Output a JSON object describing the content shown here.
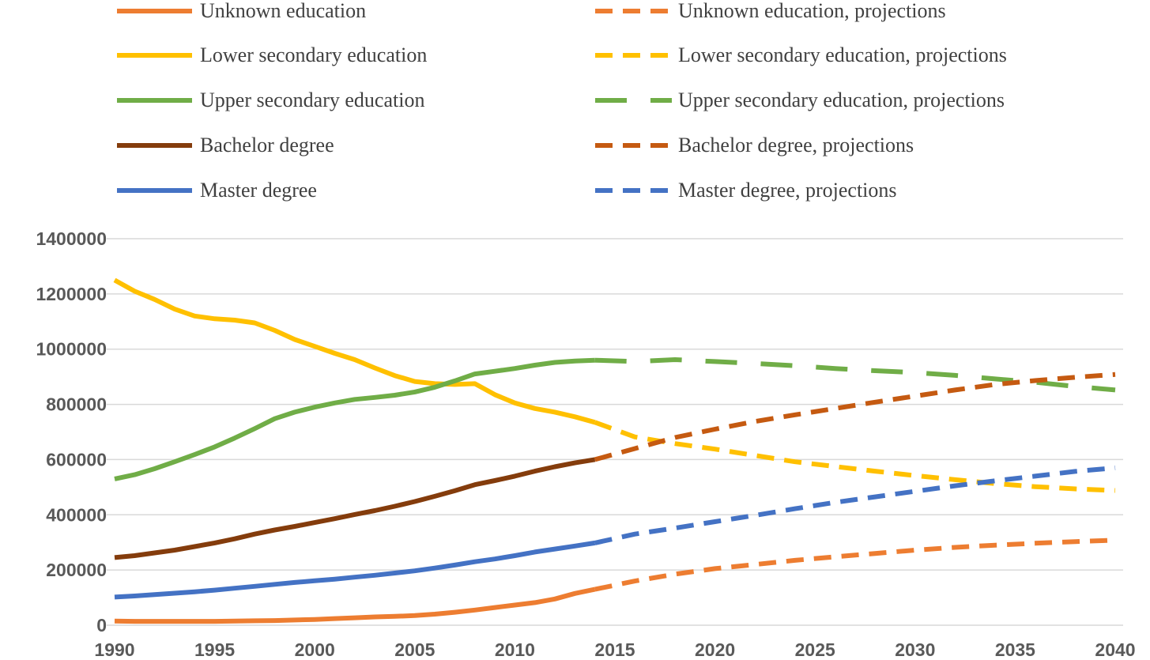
{
  "chart_data": {
    "type": "line",
    "title": "",
    "xlabel": "",
    "ylabel": "",
    "xlim": [
      1990,
      2040
    ],
    "ylim": [
      0,
      1400000
    ],
    "x_ticks": [
      "1990",
      "1995",
      "2000",
      "2005",
      "2010",
      "2015",
      "2020",
      "2025",
      "2030",
      "2035",
      "2040"
    ],
    "y_ticks": [
      "0",
      "200000",
      "400000",
      "600000",
      "800000",
      "1000000",
      "1200000",
      "1400000"
    ],
    "grid": "horizontal",
    "legend_position": "top",
    "series": [
      {
        "name": "Unknown education",
        "color": "#ED7D31",
        "style": "solid",
        "x": [
          1990,
          1991,
          1992,
          1993,
          1994,
          1995,
          1996,
          1997,
          1998,
          1999,
          2000,
          2001,
          2002,
          2003,
          2004,
          2005,
          2006,
          2007,
          2008,
          2009,
          2010,
          2011,
          2012,
          2013,
          2014
        ],
        "y": [
          15000,
          14000,
          14000,
          14000,
          14000,
          14000,
          15000,
          16000,
          17000,
          19000,
          21000,
          24000,
          27000,
          30000,
          32000,
          35000,
          40000,
          47000,
          55000,
          64000,
          73000,
          82000,
          95000,
          115000,
          130000
        ]
      },
      {
        "name": "Lower secondary education",
        "color": "#FFC000",
        "style": "solid",
        "x": [
          1990,
          1991,
          1992,
          1993,
          1994,
          1995,
          1996,
          1997,
          1998,
          1999,
          2000,
          2001,
          2002,
          2003,
          2004,
          2005,
          2006,
          2007,
          2008,
          2009,
          2010,
          2011,
          2012,
          2013,
          2014
        ],
        "y": [
          1250000,
          1210000,
          1180000,
          1145000,
          1120000,
          1110000,
          1105000,
          1095000,
          1068000,
          1035000,
          1010000,
          985000,
          962000,
          932000,
          904000,
          883000,
          875000,
          872000,
          875000,
          835000,
          805000,
          785000,
          772000,
          755000,
          735000
        ]
      },
      {
        "name": "Upper secondary education",
        "color": "#70AD47",
        "style": "solid",
        "x": [
          1990,
          1991,
          1992,
          1993,
          1994,
          1995,
          1996,
          1997,
          1998,
          1999,
          2000,
          2001,
          2002,
          2003,
          2004,
          2005,
          2006,
          2007,
          2008,
          2009,
          2010,
          2011,
          2012,
          2013,
          2014
        ],
        "y": [
          530000,
          545000,
          567000,
          592000,
          618000,
          646000,
          678000,
          712000,
          748000,
          772000,
          790000,
          805000,
          818000,
          825000,
          833000,
          845000,
          862000,
          885000,
          910000,
          920000,
          930000,
          942000,
          952000,
          957000,
          960000
        ]
      },
      {
        "name": "Bachelor degree",
        "color": "#843C0C",
        "style": "solid",
        "x": [
          1990,
          1991,
          1992,
          1993,
          1994,
          1995,
          1996,
          1997,
          1998,
          1999,
          2000,
          2001,
          2002,
          2003,
          2004,
          2005,
          2006,
          2007,
          2008,
          2009,
          2010,
          2011,
          2012,
          2013,
          2014
        ],
        "y": [
          245000,
          252000,
          262000,
          272000,
          285000,
          298000,
          313000,
          330000,
          345000,
          358000,
          372000,
          386000,
          401000,
          415000,
          431000,
          448000,
          467000,
          487000,
          509000,
          524000,
          540000,
          558000,
          574000,
          588000,
          600000
        ]
      },
      {
        "name": "Master degree",
        "color": "#4472C4",
        "style": "solid",
        "x": [
          1990,
          1991,
          1992,
          1993,
          1994,
          1995,
          1996,
          1997,
          1998,
          1999,
          2000,
          2001,
          2002,
          2003,
          2004,
          2005,
          2006,
          2007,
          2008,
          2009,
          2010,
          2011,
          2012,
          2013,
          2014
        ],
        "y": [
          102000,
          106000,
          111000,
          116000,
          121000,
          127000,
          134000,
          141000,
          148000,
          155000,
          161000,
          167000,
          174000,
          181000,
          189000,
          197000,
          207000,
          218000,
          230000,
          240000,
          252000,
          265000,
          276000,
          287000,
          298000
        ]
      },
      {
        "name": "Unknown education, projections",
        "color": "#ED7D31",
        "style": "dash",
        "x": [
          2014,
          2016,
          2018,
          2020,
          2022,
          2024,
          2026,
          2028,
          2030,
          2032,
          2034,
          2036,
          2038,
          2040
        ],
        "y": [
          130000,
          160000,
          185000,
          205000,
          220000,
          235000,
          248000,
          260000,
          272000,
          282000,
          290000,
          297000,
          303000,
          308000
        ]
      },
      {
        "name": "Lower secondary education, projections",
        "color": "#FFC000",
        "style": "dash",
        "x": [
          2014,
          2016,
          2018,
          2020,
          2022,
          2024,
          2026,
          2028,
          2030,
          2032,
          2034,
          2036,
          2038,
          2040
        ],
        "y": [
          735000,
          682000,
          658000,
          638000,
          615000,
          592000,
          575000,
          558000,
          542000,
          527000,
          513000,
          502000,
          494000,
          488000
        ]
      },
      {
        "name": "Upper secondary education, projections",
        "color": "#70AD47",
        "style": "longdash",
        "x": [
          2014,
          2016,
          2018,
          2020,
          2022,
          2024,
          2026,
          2028,
          2030,
          2032,
          2034,
          2036,
          2038,
          2040
        ],
        "y": [
          960000,
          955000,
          962000,
          955000,
          948000,
          940000,
          930000,
          922000,
          915000,
          905000,
          892000,
          880000,
          865000,
          852000
        ]
      },
      {
        "name": "Bachelor degree, projections",
        "color": "#C55A11",
        "style": "dash",
        "x": [
          2014,
          2016,
          2018,
          2020,
          2022,
          2024,
          2026,
          2028,
          2030,
          2032,
          2034,
          2036,
          2038,
          2040
        ],
        "y": [
          600000,
          640000,
          680000,
          710000,
          738000,
          762000,
          785000,
          808000,
          830000,
          852000,
          872000,
          886000,
          898000,
          908000
        ]
      },
      {
        "name": "Master degree, projections",
        "color": "#4472C4",
        "style": "dash",
        "x": [
          2014,
          2016,
          2018,
          2020,
          2022,
          2024,
          2026,
          2028,
          2030,
          2032,
          2034,
          2036,
          2038,
          2040
        ],
        "y": [
          298000,
          330000,
          352000,
          375000,
          398000,
          422000,
          445000,
          465000,
          485000,
          505000,
          523000,
          540000,
          557000,
          570000
        ]
      }
    ],
    "legend": [
      {
        "label": "Unknown education",
        "color": "#ED7D31",
        "style": "solid"
      },
      {
        "label": "Unknown education, projections",
        "color": "#ED7D31",
        "style": "dash"
      },
      {
        "label": "Lower secondary education",
        "color": "#FFC000",
        "style": "solid"
      },
      {
        "label": "Lower secondary education, projections",
        "color": "#FFC000",
        "style": "dash"
      },
      {
        "label": "Upper secondary education",
        "color": "#70AD47",
        "style": "solid"
      },
      {
        "label": "Upper secondary education, projections",
        "color": "#70AD47",
        "style": "longdash"
      },
      {
        "label": "Bachelor degree",
        "color": "#843C0C",
        "style": "solid"
      },
      {
        "label": "Bachelor degree, projections",
        "color": "#C55A11",
        "style": "dash"
      },
      {
        "label": "Master degree",
        "color": "#4472C4",
        "style": "solid"
      },
      {
        "label": "Master degree, projections",
        "color": "#4472C4",
        "style": "dash"
      }
    ]
  }
}
